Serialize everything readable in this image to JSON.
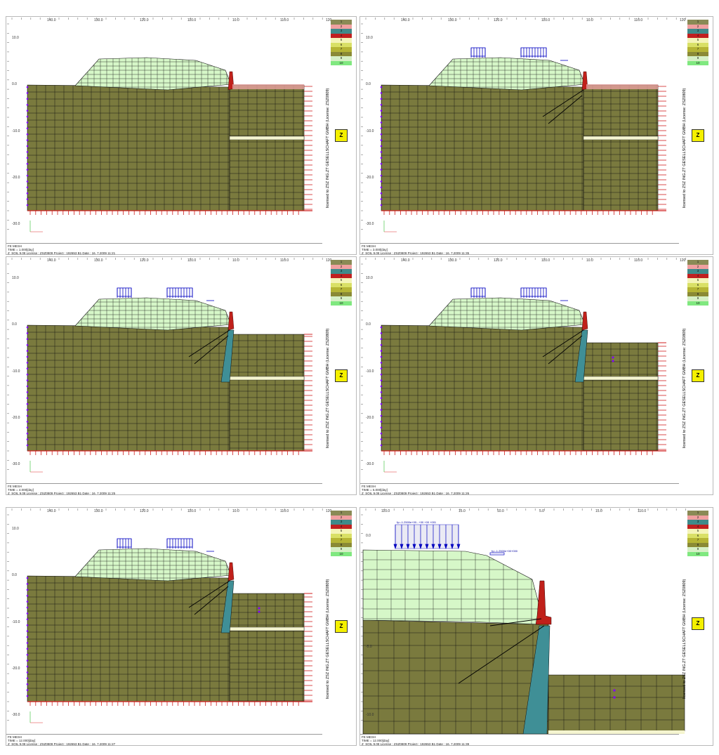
{
  "legend_items": [
    {
      "label": "1",
      "color": "#8a8a55"
    },
    {
      "label": "2",
      "color": "#f0a0a0"
    },
    {
      "label": "3",
      "color": "#3f8a8a"
    },
    {
      "label": "4",
      "color": "#c02020"
    },
    {
      "label": "5",
      "color": "#f4f4b8"
    },
    {
      "label": "6",
      "color": "#d9e066"
    },
    {
      "label": "7",
      "color": "#b5b535"
    },
    {
      "label": "8",
      "color": "#8a8a35"
    },
    {
      "label": "9",
      "color": "#d6f0c6"
    },
    {
      "label": "10",
      "color": "#80e880"
    }
  ],
  "license_vertical": "licensed to ZSZ ING.ZT GESELLSCHAFT GMBH (License: ZSZ0809)",
  "logo_text": "Z",
  "colors": {
    "soil_dark": "#7a7a3e",
    "fill_light": "#d6f7c8",
    "wall_cyan": "#3f8f96",
    "wall_red": "#c0201a",
    "pale": "#f5f5d0",
    "support_red": "#d02020",
    "node_purple": "#8000ff",
    "load_blue": "#0000c0"
  },
  "panels": [
    {
      "id": "stage-1",
      "ruler": [
        "140.0",
        "130.0",
        "120.0",
        "110.0",
        "10.0",
        "110.0",
        "120"
      ],
      "yticks": [
        "10.0",
        "0.0",
        "-10.0",
        "-20.0",
        "-30.0"
      ],
      "footer": [
        "FE MESH",
        "TIME = 1.000[day]",
        "Z_SOIL 9.08   License : ZSZ0809   Project : 192653 B1     Date : 16. 7.2009  11:21"
      ]
    },
    {
      "id": "stage-2",
      "ruler": [
        "140.0",
        "130.0",
        "120.0",
        "110.0",
        "10.0",
        "110.0",
        "120"
      ],
      "yticks": [
        "10.0",
        "0.0",
        "-10.0",
        "-20.0",
        "-30.0"
      ],
      "footer": [
        "FE MESH",
        "TIME = 3.000[day]",
        "Z_SOIL 9.08   License : ZSZ0809   Project : 192653 B1     Date : 16. 7.2009  11:35"
      ]
    },
    {
      "id": "stage-3",
      "ruler": [
        "140.0",
        "130.0",
        "120.0",
        "110.0",
        "10.0",
        "110.0",
        "120"
      ],
      "yticks": [
        "10.0",
        "0.0",
        "-10.0",
        "-20.0",
        "-30.0"
      ],
      "footer": [
        "FE MESH",
        "TIME = 4.000[day]",
        "Z_SOIL 9.08   License : ZSZ0809   Project : 192653 B1     Date : 16. 7.2009  11:25"
      ]
    },
    {
      "id": "stage-4",
      "ruler": [
        "140.0",
        "130.0",
        "120.0",
        "110.0",
        "10.0",
        "110.0",
        "120"
      ],
      "yticks": [
        "10.0",
        "0.0",
        "-10.0",
        "-20.0",
        "-30.0"
      ],
      "footer": [
        "FE MESH",
        "TIME = 5.000[day]",
        "Z_SOIL 9.08   License : ZSZ0809   Project : 192653 B1     Date : 16. 7.2009  11:26"
      ]
    },
    {
      "id": "stage-5",
      "ruler": [
        "140.0",
        "130.0",
        "120.0",
        "110.0",
        "10.0",
        "110.0",
        "120"
      ],
      "yticks": [
        "10.0",
        "0.0",
        "-10.0",
        "-20.0",
        "-30.0"
      ],
      "footer": [
        "FE MESH",
        "TIME = 12.000[day]",
        "Z_SOIL 9.08   License : ZSZ0809   Project : 192653 B1     Date : 16. 7.2009  11:27"
      ]
    },
    {
      "id": "stage-6-zoom",
      "ruler": [
        "110.0",
        "15.0",
        "10.0",
        "5.0",
        "15.0",
        "110.0"
      ],
      "yticks": [
        "0.0",
        "-5.0",
        "-10.0"
      ],
      "load_label_1": "fy=-1.2500e+00...+00 +00 +001",
      "load_label_2": "fy=-1.2500e+00+000",
      "footer": [
        "FE MESH",
        "TIME = 12.000[day]",
        "Z_SOIL 9.08   License : ZSZ0809   Project : 192653 B1     Date : 16. 7.2009  11:39"
      ]
    }
  ]
}
